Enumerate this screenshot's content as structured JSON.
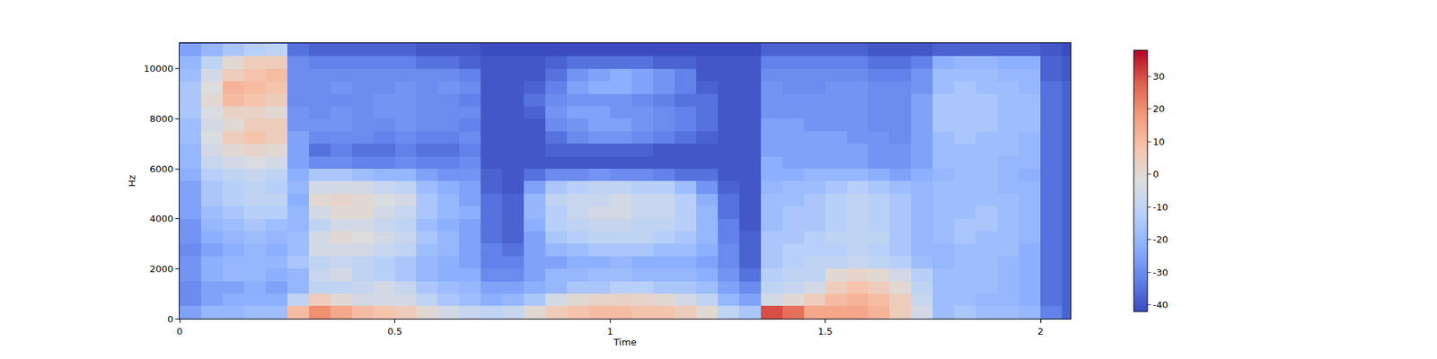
{
  "chart_data": {
    "type": "heatmap",
    "xlabel": "Time",
    "ylabel": "Hz",
    "xlim": [
      0,
      2.07
    ],
    "ylim": [
      0,
      11025
    ],
    "xticks": [
      0,
      0.5,
      1,
      1.5,
      2
    ],
    "yticks": [
      0,
      2000,
      4000,
      6000,
      8000,
      10000
    ],
    "colorbar": {
      "range": [
        -42,
        38
      ],
      "ticks": [
        -40,
        -30,
        -20,
        -10,
        0,
        10,
        20,
        30
      ]
    },
    "x": [
      0.025,
      0.075,
      0.125,
      0.175,
      0.225,
      0.275,
      0.325,
      0.375,
      0.425,
      0.475,
      0.525,
      0.575,
      0.625,
      0.675,
      0.725,
      0.775,
      0.825,
      0.875,
      0.925,
      0.975,
      1.025,
      1.075,
      1.125,
      1.175,
      1.225,
      1.275,
      1.325,
      1.375,
      1.425,
      1.475,
      1.525,
      1.575,
      1.625,
      1.675,
      1.725,
      1.775,
      1.825,
      1.875,
      1.925,
      1.975,
      2.025,
      2.075
    ],
    "y": [
      250,
      750,
      1250,
      1750,
      2250,
      2750,
      3250,
      3750,
      4250,
      4750,
      5250,
      5750,
      6250,
      6750,
      7250,
      7750,
      8250,
      8750,
      9250,
      9750,
      10250,
      10750
    ],
    "cells": [
      [
        -25,
        -30,
        -30,
        -28,
        -28,
        -30,
        -28,
        -28,
        -25,
        -25,
        -25,
        -22,
        -20,
        -20,
        -18,
        -18,
        -15,
        -15,
        -15,
        -18,
        -20,
        -25
      ],
      [
        -20,
        -25,
        -25,
        -22,
        -22,
        -25,
        -22,
        -20,
        -18,
        -15,
        -15,
        -12,
        -8,
        -5,
        -3,
        -5,
        -3,
        0,
        -2,
        -5,
        -10,
        -20
      ],
      [
        -20,
        -22,
        -25,
        -20,
        -20,
        -22,
        -20,
        -18,
        -15,
        -12,
        -12,
        -10,
        -5,
        0,
        5,
        0,
        3,
        10,
        12,
        5,
        0,
        -15
      ],
      [
        -18,
        -22,
        -22,
        -20,
        -20,
        -20,
        -18,
        -15,
        -12,
        -10,
        -10,
        -8,
        -3,
        2,
        8,
        5,
        3,
        8,
        10,
        8,
        5,
        -12
      ],
      [
        -18,
        -22,
        -25,
        -22,
        -20,
        -22,
        -20,
        -18,
        -12,
        -10,
        -12,
        -10,
        -5,
        0,
        5,
        5,
        0,
        5,
        8,
        10,
        5,
        -10
      ],
      [
        10,
        -10,
        -20,
        -20,
        -15,
        -18,
        -18,
        -20,
        -20,
        -22,
        -20,
        -22,
        -25,
        -25,
        -25,
        -28,
        -28,
        -30,
        -30,
        -30,
        -30,
        -35
      ],
      [
        20,
        5,
        -10,
        -8,
        -10,
        -5,
        -5,
        -10,
        -5,
        0,
        -5,
        -15,
        -30,
        -35,
        -30,
        -28,
        -30,
        -30,
        -30,
        -30,
        -32,
        -38
      ],
      [
        15,
        0,
        -10,
        -5,
        -8,
        -5,
        0,
        -5,
        0,
        2,
        -5,
        -15,
        -30,
        -32,
        -30,
        -28,
        -28,
        -30,
        -28,
        -30,
        -32,
        -38
      ],
      [
        10,
        -5,
        -8,
        -10,
        -10,
        -5,
        -2,
        -5,
        0,
        0,
        -5,
        -18,
        -32,
        -35,
        -30,
        -30,
        -30,
        -30,
        -30,
        -30,
        -32,
        -38
      ],
      [
        8,
        -5,
        -5,
        -12,
        -12,
        -8,
        -5,
        -8,
        -5,
        -3,
        -8,
        -20,
        -32,
        -35,
        -32,
        -30,
        -28,
        -28,
        -30,
        -30,
        -32,
        -38
      ],
      [
        5,
        -5,
        -8,
        -15,
        -15,
        -10,
        -8,
        -10,
        -8,
        -5,
        -10,
        -20,
        -30,
        -32,
        -30,
        -28,
        -28,
        -28,
        -28,
        -30,
        -32,
        -38
      ],
      [
        0,
        -10,
        -15,
        -20,
        -20,
        -18,
        -15,
        -18,
        -15,
        -15,
        -18,
        -25,
        -32,
        -35,
        -32,
        -30,
        -30,
        -30,
        -30,
        -30,
        -35,
        -40
      ],
      [
        -5,
        -15,
        -18,
        -22,
        -22,
        -20,
        -20,
        -22,
        -20,
        -20,
        -22,
        -28,
        -32,
        -35,
        -32,
        -30,
        -30,
        -30,
        -28,
        -30,
        -35,
        -40
      ],
      [
        -8,
        -18,
        -20,
        -22,
        -25,
        -25,
        -25,
        -25,
        -22,
        -25,
        -25,
        -28,
        -30,
        -32,
        -30,
        -32,
        -30,
        -32,
        -30,
        -32,
        -38,
        -40
      ],
      [
        -10,
        -22,
        -25,
        -30,
        -32,
        -32,
        -35,
        -35,
        -35,
        -35,
        -38,
        -38,
        -40,
        -40,
        -40,
        -40,
        -40,
        -40,
        -40,
        -40,
        -40,
        -42
      ],
      [
        -8,
        -20,
        -25,
        -30,
        -32,
        -35,
        -38,
        -38,
        -38,
        -38,
        -40,
        -40,
        -40,
        -40,
        -40,
        -40,
        -40,
        -40,
        -40,
        -40,
        -40,
        -42
      ],
      [
        0,
        -15,
        -22,
        -25,
        -25,
        -25,
        -25,
        -22,
        -20,
        -20,
        -25,
        -35,
        -40,
        -40,
        -40,
        -40,
        -38,
        -35,
        -38,
        -40,
        -40,
        -42
      ],
      [
        5,
        -5,
        -20,
        -20,
        -25,
        -20,
        -15,
        -12,
        -12,
        -10,
        -15,
        -30,
        -40,
        -38,
        -35,
        -30,
        -28,
        -30,
        -32,
        -35,
        -38,
        -42
      ],
      [
        8,
        0,
        -15,
        -20,
        -22,
        -18,
        -12,
        -10,
        -8,
        -8,
        -12,
        -30,
        -40,
        -38,
        -30,
        -28,
        -25,
        -28,
        -25,
        -28,
        -35,
        -42
      ],
      [
        10,
        2,
        -15,
        -18,
        -22,
        -15,
        -10,
        -8,
        -5,
        -8,
        -10,
        -28,
        -40,
        -38,
        -28,
        -25,
        -25,
        -28,
        -22,
        -25,
        -35,
        -42
      ],
      [
        10,
        3,
        -12,
        -18,
        -20,
        -15,
        -10,
        -8,
        -5,
        -5,
        -10,
        -30,
        -40,
        -38,
        -28,
        -25,
        -28,
        -28,
        -22,
        -22,
        -35,
        -42
      ],
      [
        8,
        2,
        -12,
        -20,
        -22,
        -15,
        -10,
        -10,
        -8,
        -8,
        -12,
        -30,
        -40,
        -38,
        -30,
        -28,
        -28,
        -30,
        -25,
        -25,
        -35,
        -42
      ],
      [
        8,
        0,
        -15,
        -20,
        -22,
        -18,
        -12,
        -10,
        -8,
        -8,
        -12,
        -32,
        -40,
        -40,
        -32,
        -30,
        -30,
        -32,
        -28,
        -28,
        -38,
        -42
      ],
      [
        5,
        -5,
        -15,
        -20,
        -22,
        -18,
        -15,
        -12,
        -12,
        -12,
        -18,
        -35,
        -40,
        -40,
        -35,
        -32,
        -32,
        -35,
        -32,
        -32,
        -38,
        -42
      ],
      [
        0,
        -10,
        -18,
        -22,
        -25,
        -22,
        -20,
        -20,
        -20,
        -22,
        -28,
        -35,
        -40,
        -40,
        -38,
        -35,
        -35,
        -35,
        -38,
        -40,
        -40,
        -42
      ],
      [
        -10,
        -20,
        -25,
        -28,
        -30,
        -30,
        -32,
        -32,
        -35,
        -35,
        -38,
        -40,
        -40,
        -40,
        -40,
        -40,
        -40,
        -40,
        -40,
        -40,
        -40,
        -42
      ],
      [
        -15,
        -25,
        -30,
        -35,
        -38,
        -38,
        -38,
        -40,
        -40,
        -40,
        -40,
        -40,
        -40,
        -40,
        -40,
        -40,
        -40,
        -40,
        -40,
        -40,
        -40,
        -42
      ],
      [
        30,
        -5,
        -10,
        -12,
        -15,
        -15,
        -15,
        -18,
        -18,
        -18,
        -20,
        -22,
        -22,
        -25,
        -25,
        -25,
        -28,
        -28,
        -28,
        -30,
        -32,
        -38
      ],
      [
        25,
        0,
        -8,
        -10,
        -12,
        -12,
        -15,
        -15,
        -15,
        -18,
        -18,
        -22,
        -25,
        -25,
        -25,
        -25,
        -28,
        -28,
        -30,
        -30,
        -32,
        -38
      ],
      [
        15,
        5,
        -5,
        -10,
        -10,
        -12,
        -12,
        -15,
        -15,
        -15,
        -18,
        -20,
        -25,
        -25,
        -25,
        -28,
        -28,
        -28,
        -30,
        -30,
        -32,
        -38
      ],
      [
        15,
        10,
        5,
        0,
        -10,
        -12,
        -10,
        -12,
        -12,
        -12,
        -15,
        -20,
        -25,
        -25,
        -25,
        -28,
        -28,
        -28,
        -28,
        -30,
        -32,
        -38
      ],
      [
        15,
        12,
        8,
        2,
        -8,
        -10,
        -10,
        -10,
        -10,
        -10,
        -12,
        -20,
        -25,
        -25,
        -28,
        -28,
        -28,
        -28,
        -28,
        -30,
        -32,
        -38
      ],
      [
        12,
        10,
        5,
        0,
        -10,
        -12,
        -10,
        -12,
        -12,
        -12,
        -15,
        -22,
        -28,
        -28,
        -28,
        -30,
        -30,
        -30,
        -30,
        -32,
        -35,
        -40
      ],
      [
        5,
        5,
        0,
        -5,
        -12,
        -15,
        -15,
        -15,
        -15,
        -15,
        -18,
        -25,
        -28,
        -28,
        -30,
        -30,
        -30,
        -30,
        -30,
        -32,
        -35,
        -40
      ],
      [
        -5,
        -8,
        -10,
        -12,
        -18,
        -20,
        -20,
        -20,
        -20,
        -20,
        -20,
        -22,
        -25,
        -25,
        -25,
        -25,
        -25,
        -25,
        -28,
        -28,
        -32,
        -40
      ],
      [
        -18,
        -18,
        -18,
        -18,
        -20,
        -20,
        -18,
        -18,
        -18,
        -18,
        -18,
        -20,
        -18,
        -18,
        -18,
        -15,
        -15,
        -15,
        -18,
        -18,
        -22,
        -38
      ],
      [
        -15,
        -18,
        -18,
        -18,
        -18,
        -18,
        -15,
        -15,
        -18,
        -18,
        -18,
        -18,
        -18,
        -18,
        -15,
        -15,
        -15,
        -15,
        -15,
        -18,
        -20,
        -38
      ],
      [
        -18,
        -20,
        -18,
        -18,
        -18,
        -18,
        -18,
        -15,
        -15,
        -18,
        -18,
        -18,
        -18,
        -18,
        -18,
        -15,
        -15,
        -15,
        -18,
        -18,
        -20,
        -38
      ],
      [
        -18,
        -20,
        -20,
        -20,
        -20,
        -18,
        -18,
        -18,
        -18,
        -18,
        -20,
        -20,
        -20,
        -18,
        -18,
        -18,
        -18,
        -18,
        -18,
        -20,
        -22,
        -38
      ],
      [
        -20,
        -22,
        -22,
        -22,
        -22,
        -22,
        -20,
        -20,
        -20,
        -20,
        -20,
        -22,
        -20,
        -20,
        -20,
        -18,
        -18,
        -18,
        -20,
        -20,
        -22,
        -38
      ],
      [
        -32,
        -35,
        -35,
        -35,
        -35,
        -35,
        -35,
        -35,
        -35,
        -35,
        -35,
        -35,
        -35,
        -35,
        -35,
        -35,
        -35,
        -35,
        -35,
        -38,
        -38,
        -40
      ],
      [
        -38,
        -38,
        -38,
        -38,
        -38,
        -38,
        -38,
        -38,
        -38,
        -38,
        -38,
        -38,
        -38,
        -38,
        -38,
        -38,
        -38,
        -38,
        -38,
        -40,
        -40,
        -42
      ]
    ]
  }
}
